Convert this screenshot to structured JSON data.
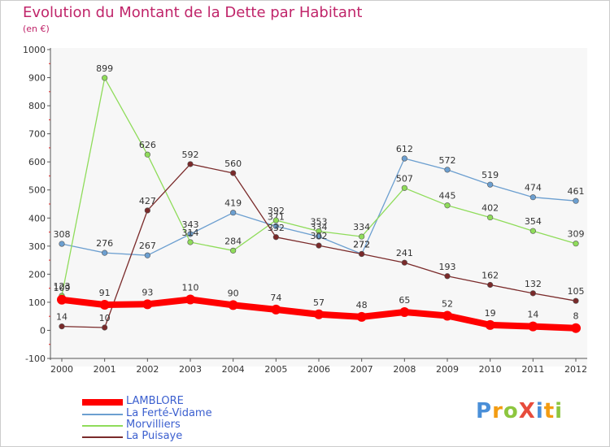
{
  "header": {
    "title": "Evolution du Montant de la Dette par Habitant",
    "unit": "(en €)"
  },
  "logo": {
    "text": "Proxiti",
    "letters": [
      {
        "ch": "P",
        "color": "#4a8fd8"
      },
      {
        "ch": "r",
        "color": "#f39c12"
      },
      {
        "ch": "o",
        "color": "#8dc63f"
      },
      {
        "ch": "X",
        "color": "#e74c3c"
      },
      {
        "ch": "i",
        "color": "#4a8fd8"
      },
      {
        "ch": "t",
        "color": "#f39c12"
      },
      {
        "ch": "i",
        "color": "#8dc63f"
      }
    ]
  },
  "chart_data": {
    "type": "line",
    "title": "Evolution du Montant de la Dette par Habitant",
    "subtitle": "(en €)",
    "xlabel": "",
    "ylabel": "",
    "x": [
      "2000",
      "2001",
      "2002",
      "2003",
      "2004",
      "2005",
      "2006",
      "2007",
      "2008",
      "2009",
      "2010",
      "2011",
      "2012"
    ],
    "ylim": [
      -100,
      1000
    ],
    "yticks": [
      "-100",
      "0",
      "100",
      "200",
      "300",
      "400",
      "500",
      "600",
      "700",
      "800",
      "900",
      "1000"
    ],
    "grid": false,
    "legend_position": "bottom-left",
    "series": [
      {
        "name": "LAMBLORE",
        "color": "#ff0000",
        "emphasis": true,
        "values": [
          109,
          91,
          93,
          110,
          90,
          74,
          57,
          48,
          65,
          52,
          19,
          14,
          8
        ]
      },
      {
        "name": "La Ferté-Vidame",
        "color": "#6c9fd0",
        "emphasis": false,
        "values": [
          308,
          276,
          267,
          343,
          419,
          371,
          334,
          272,
          612,
          572,
          519,
          474,
          461
        ]
      },
      {
        "name": "Morvilliers",
        "color": "#8fdc5a",
        "emphasis": false,
        "values": [
          123,
          899,
          626,
          314,
          284,
          392,
          353,
          334,
          507,
          445,
          402,
          354,
          309
        ]
      },
      {
        "name": "La Puisaye",
        "color": "#7a2a2a",
        "emphasis": false,
        "values": [
          14,
          10,
          427,
          592,
          560,
          332,
          302,
          272,
          241,
          193,
          162,
          132,
          105
        ]
      }
    ]
  }
}
